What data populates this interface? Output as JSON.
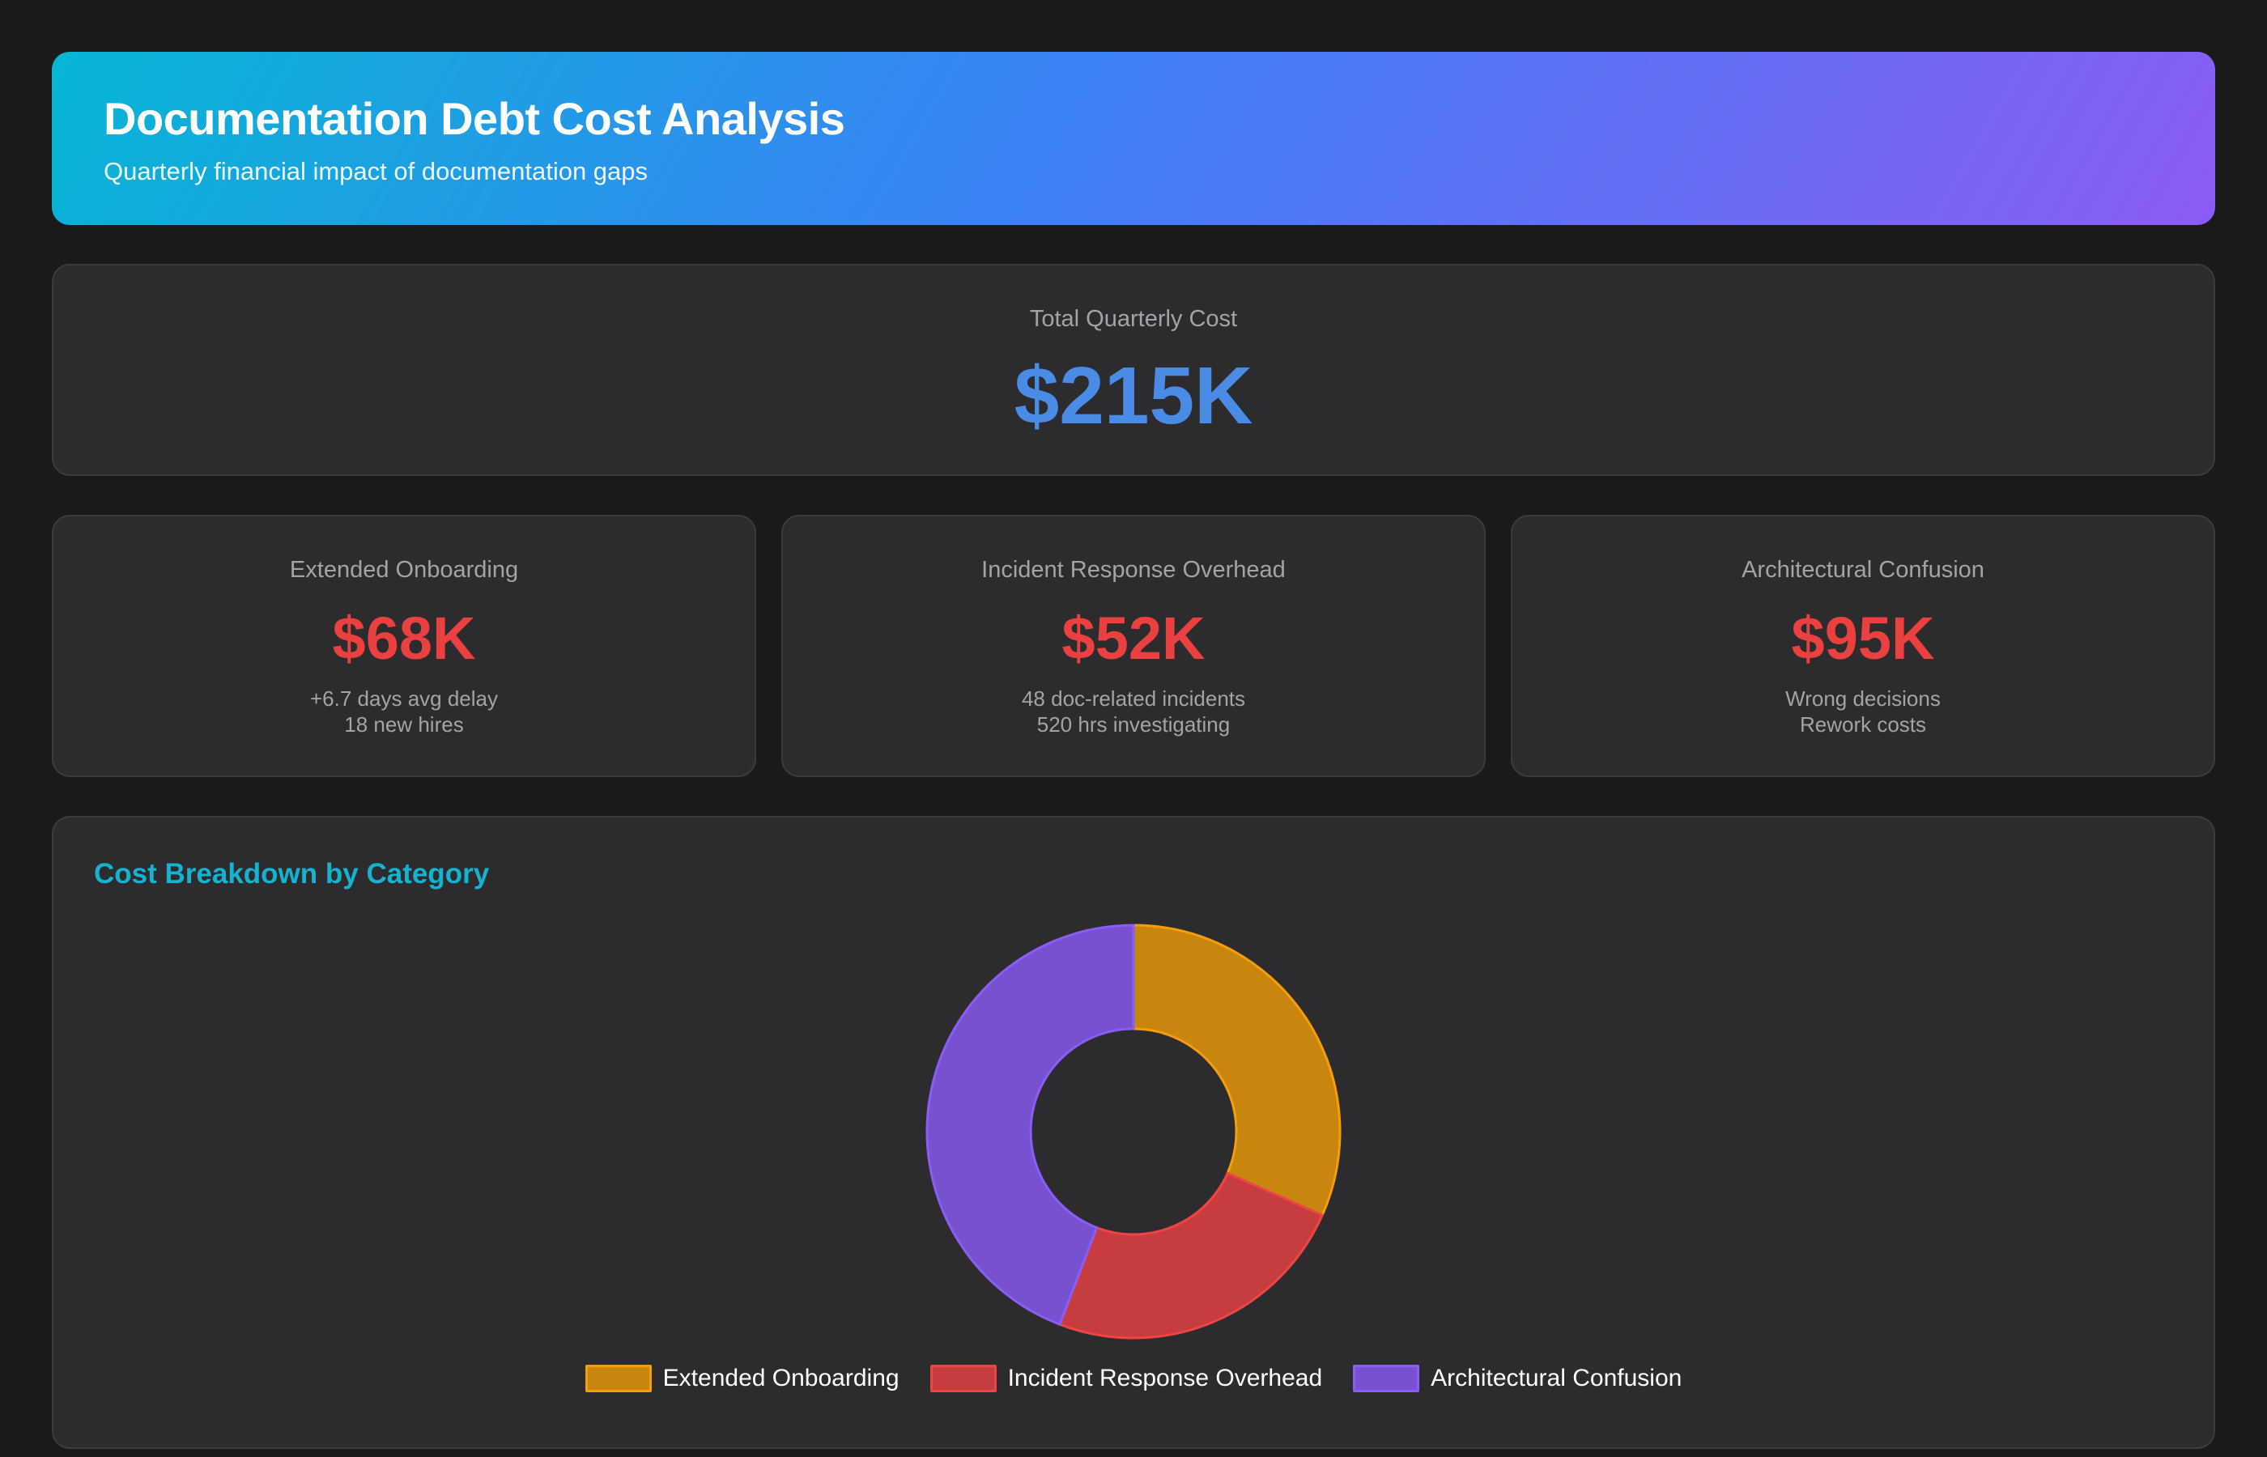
{
  "header": {
    "title": "Documentation Debt Cost Analysis",
    "subtitle": "Quarterly financial impact of documentation gaps"
  },
  "total": {
    "label": "Total Quarterly Cost",
    "value": "$215K"
  },
  "metrics": [
    {
      "label": "Extended Onboarding",
      "value": "$68K",
      "detail1": "+6.7 days avg delay",
      "detail2": "18 new hires"
    },
    {
      "label": "Incident Response Overhead",
      "value": "$52K",
      "detail1": "48 doc-related incidents",
      "detail2": "520 hrs investigating"
    },
    {
      "label": "Architectural Confusion",
      "value": "$95K",
      "detail1": "Wrong decisions",
      "detail2": "Rework costs"
    }
  ],
  "chart_card": {
    "title": "Cost Breakdown by Category"
  },
  "chart_data": {
    "type": "pie",
    "title": "",
    "categories": [
      "Extended Onboarding",
      "Incident Response Overhead",
      "Architectural Confusion"
    ],
    "values": [
      68,
      52,
      95
    ],
    "colors": [
      "#c9860f",
      "#c73d3f",
      "#7652d0"
    ],
    "border_colors": [
      "#f59e0b",
      "#ef4444",
      "#8b5cf6"
    ],
    "legend": "bottom"
  }
}
